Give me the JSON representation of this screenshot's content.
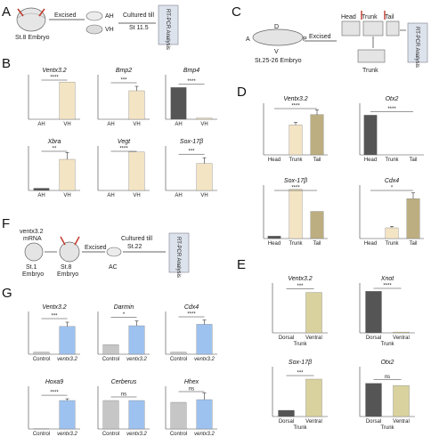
{
  "figure": {
    "panels": {
      "A": "A",
      "B": "B",
      "C": "C",
      "D": "D",
      "E": "E",
      "F": "F",
      "G": "G"
    },
    "schematic_A": {
      "stage": "St.8 Embryo",
      "step": "Excised",
      "ah": "AH",
      "vh": "VH",
      "culture": "Cultured till",
      "culture2": "St 11.5",
      "analysis": "RT-PCR Analysis"
    },
    "schematic_C": {
      "stage": "St.25-26 Embryo",
      "step": "Excised",
      "a": "A",
      "p": "P",
      "d": "D",
      "v": "V",
      "head": "Head",
      "trunk": "Trunk",
      "tail": "Tail",
      "trunk_lower": "Trunk",
      "analysis": "RT-PCR Analysis"
    },
    "schematic_F": {
      "inj1": "ventx3.2",
      "inj2": "mRNA",
      "stage1a": "St.1",
      "stage1b": "Embryo",
      "stage2a": "St.8",
      "stage2b": "Embryo",
      "step": "Excised",
      "culture": "Cultured till",
      "culture2": "St.22",
      "ac": "AC",
      "analysis": "RT-PCR Analysis"
    }
  },
  "colors": {
    "dark": "#555555",
    "cream": "#f3e4c4",
    "tan": "#bcae80",
    "khaki": "#d9d29e",
    "blue": "#9ec2f0",
    "light_gray": "#c6c6c6",
    "axis": "#444444"
  },
  "chart_data": [
    {
      "panel": "B",
      "type": "bar",
      "title": "Ventx3.2",
      "categories": [
        "AH",
        "VH"
      ],
      "values": [
        0,
        67
      ],
      "ylim": [
        0,
        80
      ],
      "significance": "****"
    },
    {
      "panel": "B",
      "type": "bar",
      "title": "Bmp2",
      "categories": [
        "AH",
        "VH"
      ],
      "values": [
        0,
        32
      ],
      "errors": [
        0,
        5
      ],
      "ylim": [
        0,
        50
      ],
      "significance": "***"
    },
    {
      "panel": "B",
      "type": "bar",
      "title": "Bmp4",
      "categories": [
        "AH",
        "VH"
      ],
      "values": [
        1.0,
        0.04
      ],
      "ylim": [
        0,
        1.4
      ],
      "significance": "****"
    },
    {
      "panel": "B",
      "type": "bar",
      "title": "Xbra",
      "categories": [
        "AH",
        "VH"
      ],
      "values": [
        1,
        14
      ],
      "errors": [
        0,
        3
      ],
      "ylim": [
        0,
        20
      ],
      "significance": "**"
    },
    {
      "panel": "B",
      "type": "bar",
      "title": "Vegt",
      "categories": [
        "AH",
        "VH"
      ],
      "values": [
        0,
        78
      ],
      "ylim": [
        0,
        90
      ],
      "significance": "****"
    },
    {
      "panel": "B",
      "type": "bar",
      "title": "Sox-17β",
      "categories": [
        "AH",
        "VH"
      ],
      "values": [
        0,
        850
      ],
      "errors": [
        0,
        180
      ],
      "ylim": [
        0,
        1400
      ],
      "significance": "***"
    },
    {
      "panel": "D",
      "type": "bar",
      "title": "Ventx3.2",
      "categories": [
        "Head",
        "Trunk",
        "Tail"
      ],
      "values": [
        0,
        58,
        78
      ],
      "errors": [
        0,
        5,
        9
      ],
      "ylim": [
        0,
        100
      ],
      "significance": "****"
    },
    {
      "panel": "D",
      "type": "bar",
      "title": "Otx2",
      "categories": [
        "Head",
        "Trunk",
        "Tail"
      ],
      "values": [
        1.0,
        0,
        0
      ],
      "ylim": [
        0,
        1.3
      ],
      "significance": "****"
    },
    {
      "panel": "D",
      "type": "bar",
      "title": "Sox-17β",
      "categories": [
        "Head",
        "Trunk",
        "Tail"
      ],
      "values": [
        3,
        60,
        33
      ],
      "ylim": [
        0,
        65
      ],
      "significance": "****"
    },
    {
      "panel": "D",
      "type": "bar",
      "title": "Cdx4",
      "categories": [
        "Head",
        "Trunk",
        "Tail"
      ],
      "values": [
        0,
        22,
        82
      ],
      "errors": [
        0,
        3,
        12
      ],
      "ylim": [
        0,
        110
      ],
      "significance": "*"
    },
    {
      "panel": "E",
      "type": "bar",
      "title": "Ventx3.2",
      "categories": [
        "Dorsal",
        "Ventral"
      ],
      "group_label": "Trunk",
      "values": [
        0,
        73
      ],
      "ylim": [
        0,
        90
      ],
      "significance": "***"
    },
    {
      "panel": "E",
      "type": "bar",
      "title": "Xnot",
      "categories": [
        "Dorsal",
        "Ventral"
      ],
      "group_label": "Trunk",
      "values": [
        1.0,
        0.02
      ],
      "ylim": [
        0,
        1.2
      ],
      "significance": "****"
    },
    {
      "panel": "E",
      "type": "bar",
      "title": "Sox-17β",
      "categories": [
        "Dorsal",
        "Ventral"
      ],
      "group_label": "Trunk",
      "values": [
        1,
        6
      ],
      "ylim": [
        0,
        8
      ],
      "significance": "***"
    },
    {
      "panel": "E",
      "type": "bar",
      "title": "Otx2",
      "categories": [
        "Dorsal",
        "Ventral"
      ],
      "group_label": "Trunk",
      "values": [
        1.0,
        0.93
      ],
      "ylim": [
        0,
        1.5
      ],
      "significance": "ns"
    },
    {
      "panel": "G",
      "type": "bar",
      "title": "Ventx3.2",
      "categories": [
        "Control",
        "ventx3.2"
      ],
      "values": [
        1,
        13
      ],
      "errors": [
        0,
        2
      ],
      "ylim": [
        0,
        20
      ],
      "significance": "***"
    },
    {
      "panel": "G",
      "type": "bar",
      "title": "Darmin",
      "categories": [
        "Control",
        "ventx3.2"
      ],
      "values": [
        1,
        3
      ],
      "errors": [
        0,
        0.5
      ],
      "ylim": [
        0,
        4.5
      ],
      "significance": "*"
    },
    {
      "panel": "G",
      "type": "bar",
      "title": "Cdx4",
      "categories": [
        "Control",
        "ventx3.2"
      ],
      "values": [
        1,
        14
      ],
      "errors": [
        0,
        2
      ],
      "ylim": [
        0,
        20
      ],
      "significance": "****"
    },
    {
      "panel": "G",
      "type": "bar",
      "title": "Hoxa9",
      "categories": [
        "Control",
        "ventx3.2"
      ],
      "values": [
        1,
        100
      ],
      "errors": [
        0,
        6
      ],
      "ylim": [
        0,
        150
      ],
      "significance": "****"
    },
    {
      "panel": "G",
      "type": "bar",
      "title": "Cerberus",
      "categories": [
        "Control",
        "ventx3.2"
      ],
      "values": [
        1.0,
        1.0
      ],
      "ylim": [
        0,
        1.5
      ],
      "significance": "ns"
    },
    {
      "panel": "G",
      "type": "bar",
      "title": "Hhex",
      "categories": [
        "Control",
        "ventx3.2"
      ],
      "values": [
        1.0,
        1.1
      ],
      "errors": [
        0,
        0.25
      ],
      "ylim": [
        0,
        1.6
      ],
      "significance": "ns"
    }
  ]
}
